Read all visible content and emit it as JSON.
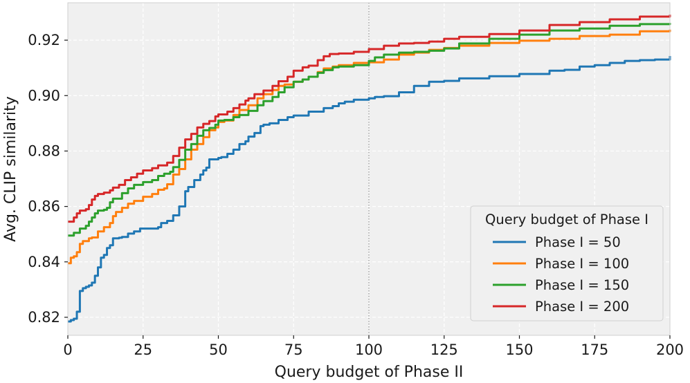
{
  "chart_data": {
    "type": "line",
    "title": "",
    "xlabel": "Query budget of Phase II",
    "ylabel": "Avg. CLIP similarity",
    "xlim": [
      0,
      200
    ],
    "ylim": [
      0.8135,
      0.9335
    ],
    "xticks": [
      0,
      25,
      50,
      75,
      100,
      125,
      150,
      175,
      200
    ],
    "xtick_labels": [
      "0",
      "25",
      "50",
      "75",
      "100",
      "125",
      "150",
      "175",
      "200"
    ],
    "yticks": [
      0.82,
      0.84,
      0.86,
      0.88,
      0.9,
      0.92
    ],
    "ytick_labels": [
      "0.82",
      "0.84",
      "0.86",
      "0.88",
      "0.90",
      "0.92"
    ],
    "grid": true,
    "reference_line_x": 100,
    "legend": {
      "title": "Query budget of Phase I",
      "position": "lower-right"
    },
    "series": [
      {
        "name": "Phase I = 50",
        "color": "#1f77b4",
        "points": [
          [
            0,
            0.8185
          ],
          [
            1,
            0.819
          ],
          [
            2,
            0.8195
          ],
          [
            3,
            0.822
          ],
          [
            4,
            0.8295
          ],
          [
            5,
            0.8305
          ],
          [
            6,
            0.831
          ],
          [
            7,
            0.8315
          ],
          [
            8,
            0.8325
          ],
          [
            9,
            0.835
          ],
          [
            10,
            0.838
          ],
          [
            11,
            0.8415
          ],
          [
            12,
            0.8425
          ],
          [
            13,
            0.845
          ],
          [
            14,
            0.846
          ],
          [
            15,
            0.8485
          ],
          [
            17,
            0.8487
          ],
          [
            18,
            0.849
          ],
          [
            20,
            0.8502
          ],
          [
            22,
            0.851
          ],
          [
            24,
            0.852
          ],
          [
            27,
            0.852
          ],
          [
            30,
            0.8525
          ],
          [
            31,
            0.854
          ],
          [
            33,
            0.8548
          ],
          [
            35,
            0.8568
          ],
          [
            37,
            0.86
          ],
          [
            39,
            0.8655
          ],
          [
            40,
            0.867
          ],
          [
            42,
            0.8695
          ],
          [
            44,
            0.8715
          ],
          [
            45,
            0.873
          ],
          [
            46,
            0.874
          ],
          [
            47,
            0.877
          ],
          [
            50,
            0.8775
          ],
          [
            51,
            0.8778
          ],
          [
            53,
            0.879
          ],
          [
            55,
            0.8805
          ],
          [
            57,
            0.8825
          ],
          [
            59,
            0.8835
          ],
          [
            60,
            0.8852
          ],
          [
            62,
            0.8865
          ],
          [
            64,
            0.889
          ],
          [
            65,
            0.8895
          ],
          [
            67,
            0.89
          ],
          [
            70,
            0.8912
          ],
          [
            73,
            0.8922
          ],
          [
            75,
            0.8928
          ],
          [
            80,
            0.8942
          ],
          [
            85,
            0.8955
          ],
          [
            88,
            0.8962
          ],
          [
            90,
            0.8972
          ],
          [
            92,
            0.8978
          ],
          [
            95,
            0.8985
          ],
          [
            100,
            0.899
          ],
          [
            102,
            0.8995
          ],
          [
            105,
            0.8998
          ],
          [
            110,
            0.9012
          ],
          [
            115,
            0.9035
          ],
          [
            120,
            0.905
          ],
          [
            125,
            0.9053
          ],
          [
            130,
            0.9062
          ],
          [
            140,
            0.907
          ],
          [
            150,
            0.9078
          ],
          [
            160,
            0.909
          ],
          [
            165,
            0.9093
          ],
          [
            170,
            0.9105
          ],
          [
            175,
            0.911
          ],
          [
            180,
            0.9118
          ],
          [
            185,
            0.9125
          ],
          [
            190,
            0.9128
          ],
          [
            195,
            0.913
          ],
          [
            200,
            0.9143
          ]
        ]
      },
      {
        "name": "Phase I = 100",
        "color": "#ff7f0e",
        "points": [
          [
            0,
            0.8395
          ],
          [
            1,
            0.8415
          ],
          [
            2,
            0.842
          ],
          [
            3,
            0.8435
          ],
          [
            4,
            0.8465
          ],
          [
            5,
            0.8475
          ],
          [
            7,
            0.8485
          ],
          [
            8,
            0.8488
          ],
          [
            10,
            0.851
          ],
          [
            12,
            0.8525
          ],
          [
            14,
            0.854
          ],
          [
            15,
            0.8565
          ],
          [
            16,
            0.858
          ],
          [
            18,
            0.8595
          ],
          [
            20,
            0.861
          ],
          [
            22,
            0.862
          ],
          [
            25,
            0.8635
          ],
          [
            28,
            0.8645
          ],
          [
            30,
            0.866
          ],
          [
            32,
            0.8665
          ],
          [
            33,
            0.868
          ],
          [
            35,
            0.8715
          ],
          [
            37,
            0.8735
          ],
          [
            39,
            0.877
          ],
          [
            41,
            0.8805
          ],
          [
            43,
            0.8825
          ],
          [
            45,
            0.885
          ],
          [
            47,
            0.8875
          ],
          [
            49,
            0.8885
          ],
          [
            50,
            0.8905
          ],
          [
            52,
            0.891
          ],
          [
            55,
            0.893
          ],
          [
            57,
            0.8948
          ],
          [
            60,
            0.8965
          ],
          [
            63,
            0.899
          ],
          [
            65,
            0.9005
          ],
          [
            68,
            0.902
          ],
          [
            70,
            0.9035
          ],
          [
            72,
            0.904
          ],
          [
            75,
            0.905
          ],
          [
            78,
            0.9058
          ],
          [
            80,
            0.9068
          ],
          [
            83,
            0.9085
          ],
          [
            85,
            0.9098
          ],
          [
            88,
            0.9105
          ],
          [
            90,
            0.911
          ],
          [
            95,
            0.9118
          ],
          [
            100,
            0.912
          ],
          [
            105,
            0.913
          ],
          [
            110,
            0.9148
          ],
          [
            115,
            0.9155
          ],
          [
            120,
            0.9165
          ],
          [
            125,
            0.9172
          ],
          [
            130,
            0.918
          ],
          [
            140,
            0.919
          ],
          [
            150,
            0.9198
          ],
          [
            160,
            0.9205
          ],
          [
            170,
            0.9215
          ],
          [
            180,
            0.922
          ],
          [
            190,
            0.9232
          ],
          [
            200,
            0.9238
          ]
        ]
      },
      {
        "name": "Phase I = 150",
        "color": "#2ca02c",
        "points": [
          [
            0,
            0.8495
          ],
          [
            2,
            0.8505
          ],
          [
            4,
            0.852
          ],
          [
            6,
            0.853
          ],
          [
            7,
            0.8545
          ],
          [
            8,
            0.856
          ],
          [
            9,
            0.8575
          ],
          [
            10,
            0.8585
          ],
          [
            12,
            0.8588
          ],
          [
            13,
            0.8595
          ],
          [
            14,
            0.8615
          ],
          [
            15,
            0.8628
          ],
          [
            18,
            0.8648
          ],
          [
            20,
            0.8665
          ],
          [
            22,
            0.8678
          ],
          [
            25,
            0.8688
          ],
          [
            28,
            0.8695
          ],
          [
            30,
            0.871
          ],
          [
            32,
            0.8718
          ],
          [
            34,
            0.8725
          ],
          [
            35,
            0.8742
          ],
          [
            37,
            0.8768
          ],
          [
            39,
            0.8805
          ],
          [
            41,
            0.8825
          ],
          [
            43,
            0.8855
          ],
          [
            45,
            0.8875
          ],
          [
            47,
            0.8883
          ],
          [
            49,
            0.8895
          ],
          [
            50,
            0.891
          ],
          [
            52,
            0.8912
          ],
          [
            55,
            0.8922
          ],
          [
            57,
            0.893
          ],
          [
            60,
            0.8945
          ],
          [
            63,
            0.8965
          ],
          [
            65,
            0.898
          ],
          [
            68,
            0.8995
          ],
          [
            70,
            0.9012
          ],
          [
            72,
            0.903
          ],
          [
            75,
            0.905
          ],
          [
            78,
            0.9058
          ],
          [
            80,
            0.9068
          ],
          [
            83,
            0.9082
          ],
          [
            85,
            0.9092
          ],
          [
            88,
            0.9102
          ],
          [
            90,
            0.9105
          ],
          [
            95,
            0.911
          ],
          [
            100,
            0.9125
          ],
          [
            102,
            0.9138
          ],
          [
            105,
            0.9148
          ],
          [
            110,
            0.9155
          ],
          [
            115,
            0.9158
          ],
          [
            120,
            0.9162
          ],
          [
            125,
            0.917
          ],
          [
            130,
            0.9188
          ],
          [
            140,
            0.9205
          ],
          [
            150,
            0.922
          ],
          [
            160,
            0.9235
          ],
          [
            170,
            0.9242
          ],
          [
            180,
            0.9252
          ],
          [
            190,
            0.9258
          ],
          [
            200,
            0.9262
          ]
        ]
      },
      {
        "name": "Phase I = 200",
        "color": "#d62728",
        "points": [
          [
            0,
            0.8545
          ],
          [
            2,
            0.856
          ],
          [
            3,
            0.8575
          ],
          [
            4,
            0.8585
          ],
          [
            6,
            0.859
          ],
          [
            7,
            0.8605
          ],
          [
            8,
            0.8625
          ],
          [
            9,
            0.8638
          ],
          [
            10,
            0.8645
          ],
          [
            12,
            0.865
          ],
          [
            14,
            0.8658
          ],
          [
            15,
            0.8668
          ],
          [
            17,
            0.8678
          ],
          [
            19,
            0.8695
          ],
          [
            21,
            0.8705
          ],
          [
            23,
            0.8718
          ],
          [
            25,
            0.873
          ],
          [
            28,
            0.8738
          ],
          [
            30,
            0.8748
          ],
          [
            33,
            0.8758
          ],
          [
            35,
            0.8782
          ],
          [
            37,
            0.8812
          ],
          [
            39,
            0.8842
          ],
          [
            41,
            0.8862
          ],
          [
            43,
            0.8885
          ],
          [
            45,
            0.8898
          ],
          [
            47,
            0.8908
          ],
          [
            49,
            0.8925
          ],
          [
            50,
            0.8932
          ],
          [
            53,
            0.8942
          ],
          [
            55,
            0.8955
          ],
          [
            57,
            0.8968
          ],
          [
            59,
            0.8982
          ],
          [
            60,
            0.899
          ],
          [
            62,
            0.9005
          ],
          [
            65,
            0.9018
          ],
          [
            68,
            0.9035
          ],
          [
            70,
            0.9052
          ],
          [
            73,
            0.9068
          ],
          [
            75,
            0.909
          ],
          [
            78,
            0.9102
          ],
          [
            80,
            0.9108
          ],
          [
            83,
            0.9128
          ],
          [
            85,
            0.9142
          ],
          [
            87,
            0.915
          ],
          [
            90,
            0.9152
          ],
          [
            95,
            0.9158
          ],
          [
            100,
            0.9168
          ],
          [
            105,
            0.918
          ],
          [
            110,
            0.9188
          ],
          [
            115,
            0.919
          ],
          [
            120,
            0.9195
          ],
          [
            125,
            0.9205
          ],
          [
            130,
            0.9212
          ],
          [
            140,
            0.9222
          ],
          [
            150,
            0.9235
          ],
          [
            160,
            0.9255
          ],
          [
            170,
            0.9265
          ],
          [
            180,
            0.9275
          ],
          [
            190,
            0.9285
          ],
          [
            200,
            0.9292
          ]
        ]
      }
    ]
  }
}
